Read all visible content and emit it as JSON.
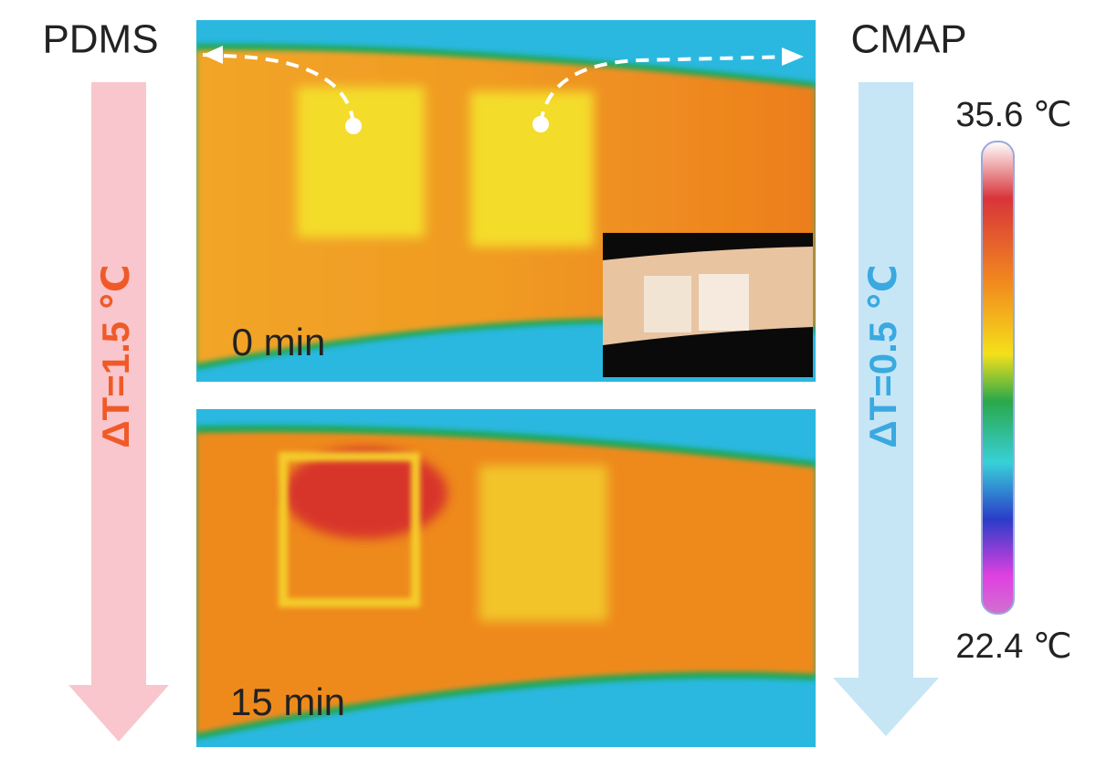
{
  "labels": {
    "left": "PDMS",
    "right": "CMAP"
  },
  "panels": [
    {
      "time": "0 min"
    },
    {
      "time": "15 min"
    }
  ],
  "arrows": {
    "left": "ΔT=1.5 ℃",
    "right": "ΔT=0.5 ℃"
  },
  "colorbar": {
    "max": "35.6 ℃",
    "min": "22.4 ℃"
  }
}
